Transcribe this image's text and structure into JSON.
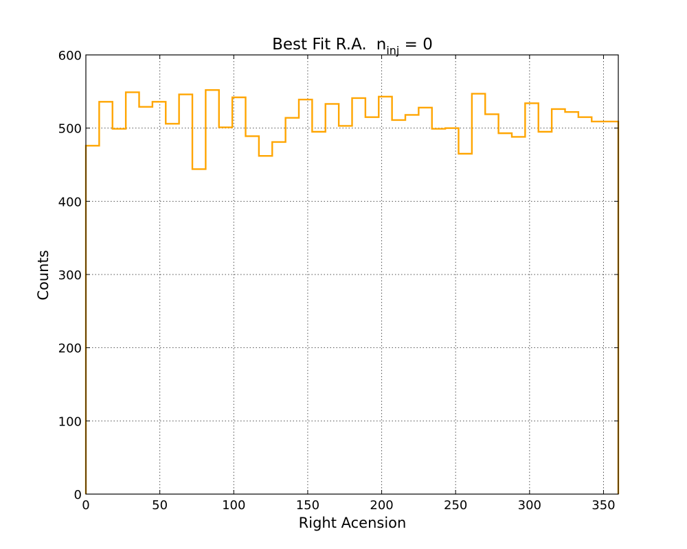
{
  "chart_data": {
    "type": "bar",
    "style": "step-histogram",
    "title": "Best Fit R.A.",
    "title_annotation": {
      "base": "n",
      "subscript": "inj",
      "rest": " = 0"
    },
    "xlabel": "Right Acension",
    "ylabel": "Counts",
    "xlim": [
      0,
      360
    ],
    "ylim": [
      0,
      600
    ],
    "xticks": [
      0,
      50,
      100,
      150,
      200,
      250,
      300,
      350
    ],
    "yticks": [
      0,
      100,
      200,
      300,
      400,
      500,
      600
    ],
    "grid": true,
    "bin_edges": [
      0,
      9,
      18,
      27,
      36,
      45,
      54,
      63,
      72,
      81,
      90,
      99,
      108,
      117,
      126,
      135,
      144,
      153,
      162,
      171,
      180,
      189,
      198,
      207,
      216,
      225,
      234,
      243,
      252,
      261,
      270,
      279,
      288,
      297,
      306,
      315,
      324,
      333,
      342,
      351,
      360
    ],
    "values": [
      476,
      536,
      499,
      549,
      529,
      536,
      506,
      546,
      444,
      552,
      501,
      542,
      489,
      462,
      481,
      514,
      539,
      495,
      533,
      503,
      541,
      515,
      543,
      511,
      518,
      528,
      499,
      500,
      465,
      547,
      519,
      493,
      488,
      534,
      495,
      526,
      522,
      515,
      509,
      509
    ],
    "color": "#ffa500"
  }
}
